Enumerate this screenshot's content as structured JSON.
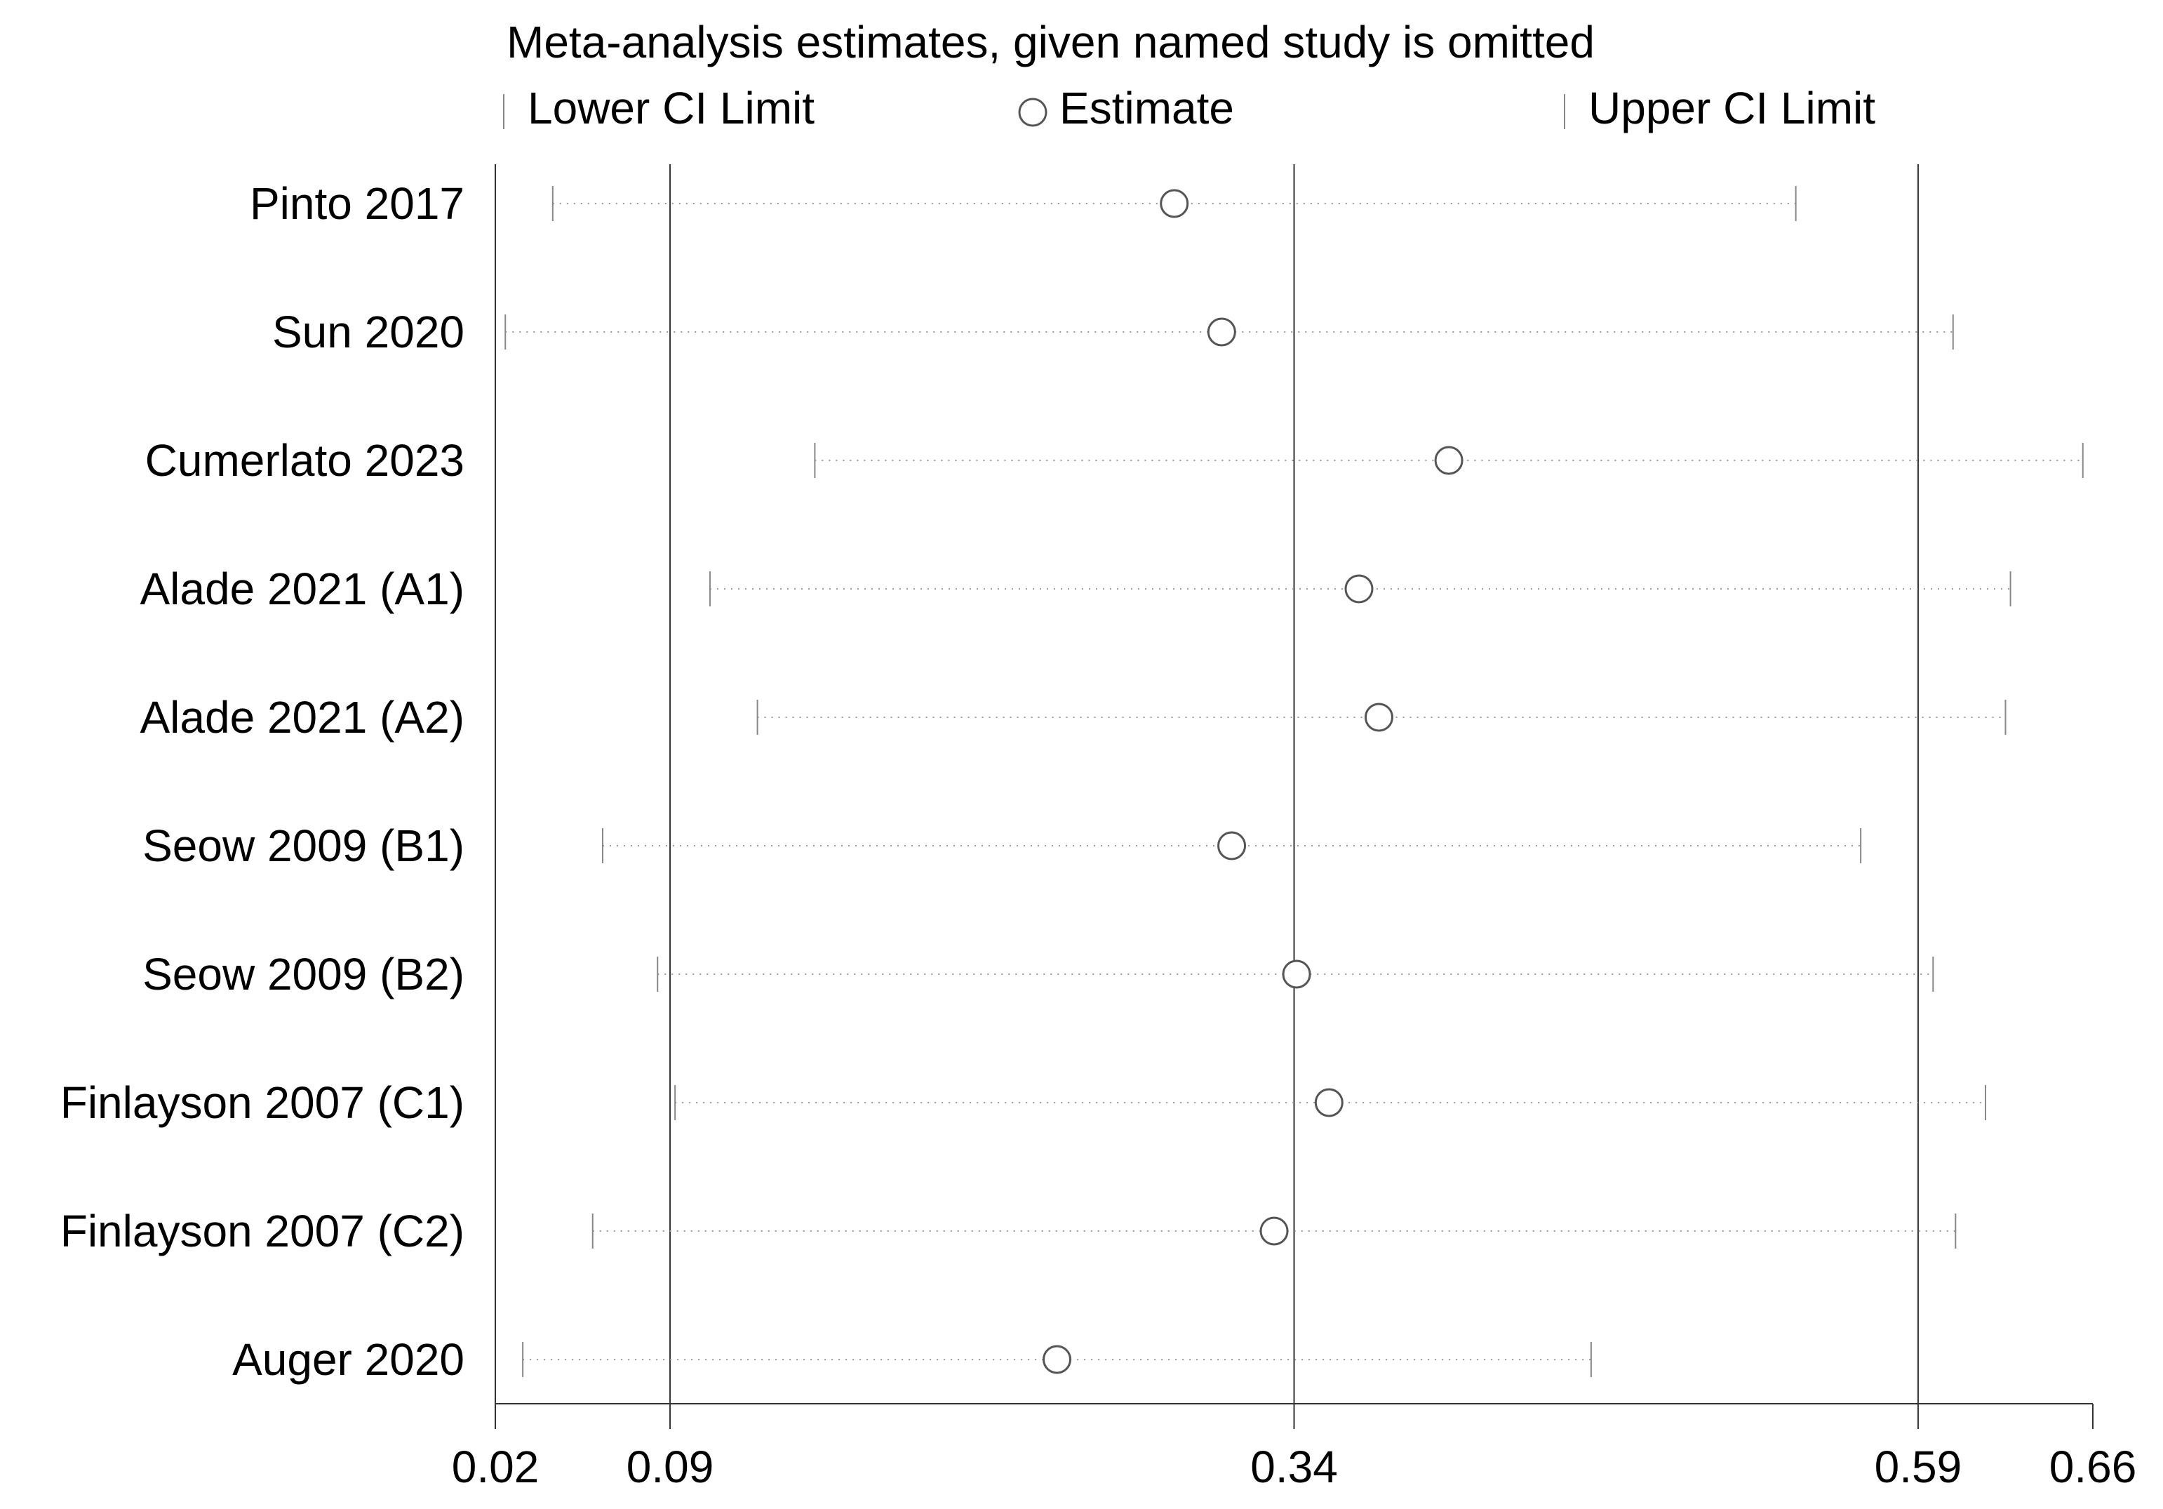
{
  "chart_data": {
    "type": "forest",
    "title": "Meta-analysis estimates, given named study is omitted",
    "legend": {
      "lower": "Lower CI Limit",
      "estimate": "Estimate",
      "upper": "Upper CI Limit",
      "placement": "top"
    },
    "xlim": [
      0.02,
      0.66
    ],
    "xticks": [
      0.02,
      0.09,
      0.34,
      0.59,
      0.66
    ],
    "xtick_labels": [
      "0.02",
      "0.09",
      "0.34",
      "0.59",
      "0.66"
    ],
    "reference_lines": [
      0.09,
      0.34,
      0.59
    ],
    "grid": false,
    "studies": [
      {
        "label": "Pinto 2017",
        "lower": 0.043,
        "estimate": 0.292,
        "upper": 0.541
      },
      {
        "label": "Sun 2020",
        "lower": 0.024,
        "estimate": 0.311,
        "upper": 0.604
      },
      {
        "label": "Cumerlato 2023",
        "lower": 0.148,
        "estimate": 0.402,
        "upper": 0.656
      },
      {
        "label": "Alade 2021 (A1)",
        "lower": 0.106,
        "estimate": 0.366,
        "upper": 0.627
      },
      {
        "label": "Alade 2021 (A2)",
        "lower": 0.125,
        "estimate": 0.374,
        "upper": 0.625
      },
      {
        "label": "Seow 2009 (B1)",
        "lower": 0.063,
        "estimate": 0.315,
        "upper": 0.567
      },
      {
        "label": "Seow 2009 (B2)",
        "lower": 0.085,
        "estimate": 0.341,
        "upper": 0.596
      },
      {
        "label": "Finlayson 2007 (C1)",
        "lower": 0.092,
        "estimate": 0.354,
        "upper": 0.617
      },
      {
        "label": "Finlayson 2007 (C2)",
        "lower": 0.059,
        "estimate": 0.332,
        "upper": 0.605
      },
      {
        "label": "Auger 2020",
        "lower": 0.031,
        "estimate": 0.245,
        "upper": 0.459
      }
    ]
  }
}
